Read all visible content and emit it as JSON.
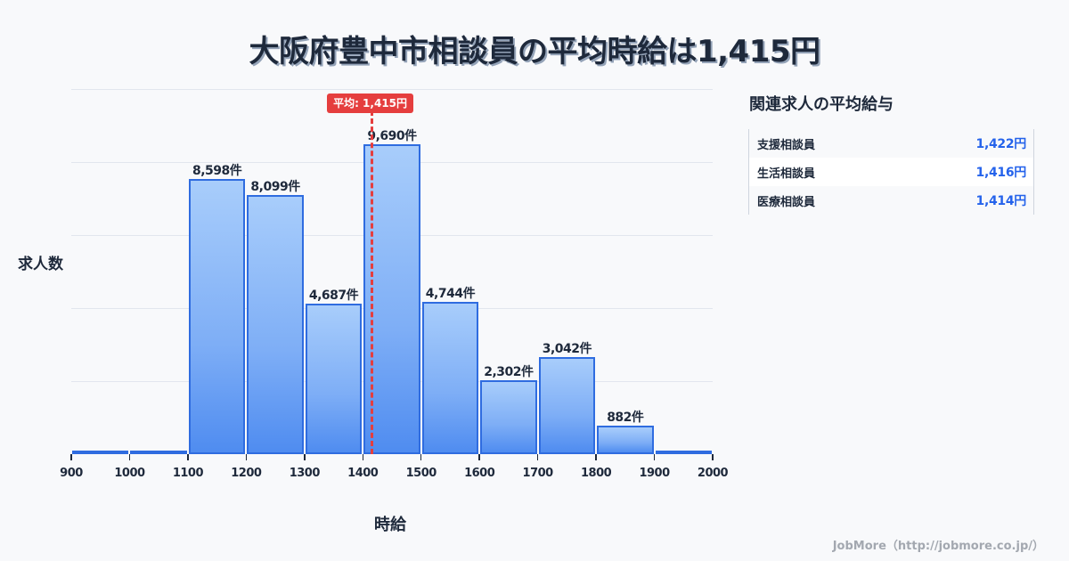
{
  "title": "大阪府豊中市相談員の平均時給は1,415円",
  "average_badge": "平均: 1,415円",
  "side_panel": {
    "title": "関連求人の平均給与",
    "rows": [
      {
        "name": "支援相談員",
        "value": "1,422円"
      },
      {
        "name": "生活相談員",
        "value": "1,416円"
      },
      {
        "name": "医療相談員",
        "value": "1,414円"
      }
    ]
  },
  "footer": "JobMore（http://jobmore.co.jp/）",
  "chart_data": {
    "type": "bar",
    "title": "大阪府豊中市相談員の平均時給は1,415円",
    "xlabel": "時給",
    "ylabel": "求人数",
    "bins": [
      [
        900,
        1000
      ],
      [
        1000,
        1100
      ],
      [
        1100,
        1200
      ],
      [
        1200,
        1300
      ],
      [
        1300,
        1400
      ],
      [
        1400,
        1500
      ],
      [
        1500,
        1600
      ],
      [
        1600,
        1700
      ],
      [
        1700,
        1800
      ],
      [
        1800,
        1900
      ],
      [
        1900,
        2000
      ]
    ],
    "categories": [
      "900-1000",
      "1000-1100",
      "1100-1200",
      "1200-1300",
      "1300-1400",
      "1400-1500",
      "1500-1600",
      "1600-1700",
      "1700-1800",
      "1800-1900",
      "1900-2000"
    ],
    "values": [
      30,
      30,
      8598,
      8099,
      4687,
      9690,
      4744,
      2302,
      3042,
      882,
      60
    ],
    "labels": [
      "",
      "",
      "8,598件",
      "8,099件",
      "4,687件",
      "9,690件",
      "4,744件",
      "2,302件",
      "3,042件",
      "882件",
      ""
    ],
    "x_ticks": [
      "900",
      "1000",
      "1100",
      "1200",
      "1300",
      "1400",
      "1500",
      "1600",
      "1700",
      "1800",
      "1900",
      "2000"
    ],
    "xlim": [
      900,
      2000
    ],
    "ylim": [
      0,
      11400
    ],
    "average": 1415,
    "average_label": "平均: 1,415円",
    "grid": true,
    "legend": "none"
  }
}
